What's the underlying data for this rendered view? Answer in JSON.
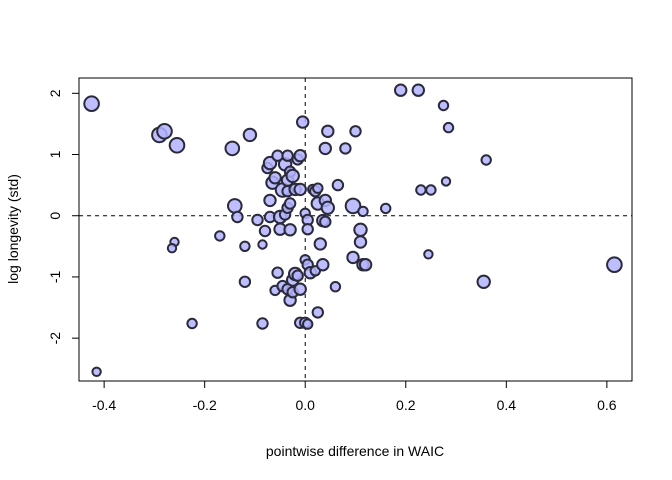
{
  "chart_data": {
    "type": "scatter",
    "title": "",
    "xlabel": "pointwise difference in WAIC",
    "ylabel": "log longevity (std)",
    "xlim": [
      -0.45,
      0.65
    ],
    "ylim": [
      -2.7,
      2.25
    ],
    "xticks": [
      -0.4,
      -0.2,
      0.0,
      0.2,
      0.4,
      0.6
    ],
    "xtick_labels": [
      "-0.4",
      "-0.2",
      "0.0",
      "0.2",
      "0.4",
      "0.6"
    ],
    "yticks": [
      -2,
      -1,
      0,
      1,
      2
    ],
    "ytick_labels": [
      "-2",
      "-1",
      "0",
      "1",
      "2"
    ],
    "reference_lines": {
      "x": 0,
      "y": 0,
      "style": "dashed"
    },
    "grid": false,
    "legend": "none",
    "marker": {
      "fill": "#b3b3ff",
      "stroke": "#2a2a3a"
    },
    "points": [
      {
        "x": -0.425,
        "y": 1.83,
        "size": 1.4
      },
      {
        "x": -0.415,
        "y": -2.55,
        "size": 0.8
      },
      {
        "x": -0.29,
        "y": 1.32,
        "size": 1.4
      },
      {
        "x": -0.28,
        "y": 1.38,
        "size": 1.4
      },
      {
        "x": -0.255,
        "y": 1.15,
        "size": 1.4
      },
      {
        "x": -0.26,
        "y": -0.43,
        "size": 0.8
      },
      {
        "x": -0.265,
        "y": -0.53,
        "size": 0.8
      },
      {
        "x": -0.225,
        "y": -1.76,
        "size": 0.9
      },
      {
        "x": -0.17,
        "y": -0.33,
        "size": 0.9
      },
      {
        "x": -0.145,
        "y": 1.1,
        "size": 1.3
      },
      {
        "x": -0.14,
        "y": 0.16,
        "size": 1.3
      },
      {
        "x": -0.135,
        "y": -0.02,
        "size": 1.0
      },
      {
        "x": -0.12,
        "y": -0.5,
        "size": 0.9
      },
      {
        "x": -0.12,
        "y": -1.08,
        "size": 1.0
      },
      {
        "x": -0.11,
        "y": 1.32,
        "size": 1.2
      },
      {
        "x": -0.095,
        "y": -0.07,
        "size": 1.0
      },
      {
        "x": -0.085,
        "y": -1.76,
        "size": 1.0
      },
      {
        "x": -0.085,
        "y": -0.47,
        "size": 0.8
      },
      {
        "x": -0.08,
        "y": -0.25,
        "size": 1.0
      },
      {
        "x": -0.075,
        "y": 0.78,
        "size": 1.0
      },
      {
        "x": -0.07,
        "y": 0.86,
        "size": 1.2
      },
      {
        "x": -0.07,
        "y": 0.25,
        "size": 1.1
      },
      {
        "x": -0.07,
        "y": -0.02,
        "size": 1.0
      },
      {
        "x": -0.065,
        "y": 0.54,
        "size": 1.2
      },
      {
        "x": -0.06,
        "y": 0.62,
        "size": 1.1
      },
      {
        "x": -0.06,
        "y": -1.22,
        "size": 0.9
      },
      {
        "x": -0.055,
        "y": 0.98,
        "size": 1.0
      },
      {
        "x": -0.055,
        "y": -0.93,
        "size": 1.0
      },
      {
        "x": -0.05,
        "y": -0.02,
        "size": 1.2
      },
      {
        "x": -0.05,
        "y": -0.22,
        "size": 1.1
      },
      {
        "x": -0.045,
        "y": 0.42,
        "size": 1.3
      },
      {
        "x": -0.045,
        "y": -1.15,
        "size": 1.0
      },
      {
        "x": -0.04,
        "y": 0.84,
        "size": 1.2
      },
      {
        "x": -0.04,
        "y": 0.02,
        "size": 1.0
      },
      {
        "x": -0.035,
        "y": 0.98,
        "size": 1.0
      },
      {
        "x": -0.035,
        "y": 0.58,
        "size": 1.1
      },
      {
        "x": -0.035,
        "y": 0.4,
        "size": 1.0
      },
      {
        "x": -0.035,
        "y": 0.13,
        "size": 1.0
      },
      {
        "x": -0.035,
        "y": -1.2,
        "size": 1.0
      },
      {
        "x": -0.03,
        "y": 0.72,
        "size": 1.0
      },
      {
        "x": -0.03,
        "y": 0.2,
        "size": 1.0
      },
      {
        "x": -0.03,
        "y": -0.23,
        "size": 1.1
      },
      {
        "x": -0.03,
        "y": -1.38,
        "size": 1.1
      },
      {
        "x": -0.025,
        "y": 0.65,
        "size": 1.2
      },
      {
        "x": -0.025,
        "y": -1.05,
        "size": 1.1
      },
      {
        "x": -0.025,
        "y": -1.25,
        "size": 1.0
      },
      {
        "x": -0.02,
        "y": 0.43,
        "size": 1.1
      },
      {
        "x": -0.02,
        "y": -0.95,
        "size": 1.2
      },
      {
        "x": -0.015,
        "y": 0.92,
        "size": 1.0
      },
      {
        "x": -0.015,
        "y": -0.98,
        "size": 1.0
      },
      {
        "x": -0.01,
        "y": 0.98,
        "size": 1.1
      },
      {
        "x": -0.01,
        "y": 0.43,
        "size": 1.1
      },
      {
        "x": -0.01,
        "y": -1.75,
        "size": 1.0
      },
      {
        "x": -0.01,
        "y": -1.2,
        "size": 1.1
      },
      {
        "x": -0.005,
        "y": 1.53,
        "size": 1.1
      },
      {
        "x": 0.0,
        "y": -0.72,
        "size": 0.9
      },
      {
        "x": 0.0,
        "y": 0.04,
        "size": 0.9
      },
      {
        "x": 0.0,
        "y": -1.75,
        "size": 1.0
      },
      {
        "x": 0.005,
        "y": -0.8,
        "size": 1.0
      },
      {
        "x": 0.005,
        "y": -0.07,
        "size": 1.0
      },
      {
        "x": 0.005,
        "y": -0.22,
        "size": 1.0
      },
      {
        "x": 0.005,
        "y": -1.77,
        "size": 0.9
      },
      {
        "x": 0.01,
        "y": -0.93,
        "size": 1.1
      },
      {
        "x": 0.015,
        "y": 0.43,
        "size": 0.9
      },
      {
        "x": 0.02,
        "y": -0.9,
        "size": 0.9
      },
      {
        "x": 0.02,
        "y": 0.4,
        "size": 1.0
      },
      {
        "x": 0.025,
        "y": 0.2,
        "size": 1.2
      },
      {
        "x": 0.025,
        "y": -1.58,
        "size": 1.0
      },
      {
        "x": 0.025,
        "y": 0.45,
        "size": 0.9
      },
      {
        "x": 0.03,
        "y": -0.46,
        "size": 1.1
      },
      {
        "x": 0.035,
        "y": -0.08,
        "size": 1.1
      },
      {
        "x": 0.035,
        "y": -0.8,
        "size": 1.1
      },
      {
        "x": 0.04,
        "y": 1.1,
        "size": 1.1
      },
      {
        "x": 0.04,
        "y": 0.25,
        "size": 1.1
      },
      {
        "x": 0.04,
        "y": -0.1,
        "size": 1.0
      },
      {
        "x": 0.045,
        "y": 1.38,
        "size": 1.1
      },
      {
        "x": 0.045,
        "y": 0.13,
        "size": 1.2
      },
      {
        "x": 0.06,
        "y": -1.16,
        "size": 0.9
      },
      {
        "x": 0.065,
        "y": 0.5,
        "size": 1.0
      },
      {
        "x": 0.08,
        "y": 1.1,
        "size": 1.0
      },
      {
        "x": 0.095,
        "y": 0.16,
        "size": 1.4
      },
      {
        "x": 0.095,
        "y": -0.68,
        "size": 1.1
      },
      {
        "x": 0.1,
        "y": 1.38,
        "size": 1.0
      },
      {
        "x": 0.11,
        "y": -0.23,
        "size": 1.2
      },
      {
        "x": 0.11,
        "y": -0.43,
        "size": 1.1
      },
      {
        "x": 0.115,
        "y": -0.8,
        "size": 1.1
      },
      {
        "x": 0.115,
        "y": 0.07,
        "size": 0.9
      },
      {
        "x": 0.12,
        "y": -0.8,
        "size": 1.1
      },
      {
        "x": 0.16,
        "y": 0.12,
        "size": 0.9
      },
      {
        "x": 0.19,
        "y": 2.05,
        "size": 1.1
      },
      {
        "x": 0.225,
        "y": 2.05,
        "size": 1.1
      },
      {
        "x": 0.23,
        "y": 0.42,
        "size": 0.9
      },
      {
        "x": 0.245,
        "y": -0.63,
        "size": 0.8
      },
      {
        "x": 0.25,
        "y": 0.42,
        "size": 0.9
      },
      {
        "x": 0.275,
        "y": 1.8,
        "size": 0.9
      },
      {
        "x": 0.28,
        "y": 0.56,
        "size": 0.8
      },
      {
        "x": 0.285,
        "y": 1.44,
        "size": 0.9
      },
      {
        "x": 0.355,
        "y": -1.08,
        "size": 1.2
      },
      {
        "x": 0.36,
        "y": 0.91,
        "size": 0.9
      },
      {
        "x": 0.615,
        "y": -0.8,
        "size": 1.4
      }
    ]
  }
}
